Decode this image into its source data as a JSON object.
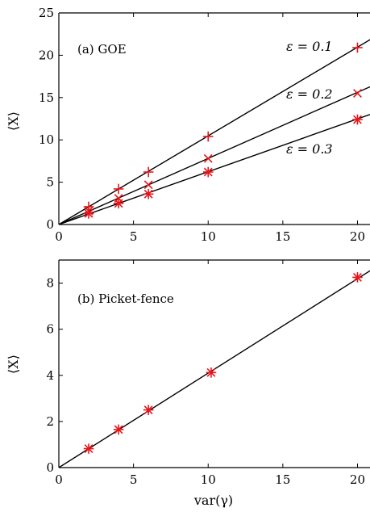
{
  "chart_data": [
    {
      "type": "scatter",
      "panel_label": "(a) GOE",
      "ylabel": "⟨X⟩",
      "xlabel": "",
      "xlim": [
        0,
        21
      ],
      "ylim": [
        0,
        25
      ],
      "xticks": [
        0,
        5,
        10,
        15,
        20
      ],
      "yticks": [
        0,
        5,
        10,
        15,
        20,
        25
      ],
      "grid": false,
      "series": [
        {
          "name": "ε = 0.1",
          "marker": "plus",
          "x": [
            2,
            4,
            6,
            10,
            20
          ],
          "y": [
            2.1,
            4.2,
            6.2,
            10.4,
            20.9
          ],
          "fit": {
            "x": [
              0,
              21
            ],
            "y": [
              0,
              22.0
            ]
          }
        },
        {
          "name": "ε = 0.2",
          "marker": "cross",
          "x": [
            2,
            4,
            6,
            10,
            20
          ],
          "y": [
            1.6,
            3.1,
            4.7,
            7.8,
            15.5
          ],
          "fit": {
            "x": [
              0,
              21
            ],
            "y": [
              0,
              16.4
            ]
          }
        },
        {
          "name": "ε = 0.3",
          "marker": "star",
          "x": [
            2,
            4,
            6,
            10,
            20
          ],
          "y": [
            1.3,
            2.5,
            3.6,
            6.2,
            12.4
          ],
          "fit": {
            "x": [
              0,
              21
            ],
            "y": [
              0,
              13.1
            ]
          }
        }
      ]
    },
    {
      "type": "scatter",
      "panel_label": "(b) Picket-fence",
      "ylabel": "⟨X⟩",
      "xlabel": "var(γ)",
      "xlim": [
        0,
        21
      ],
      "ylim": [
        0,
        9
      ],
      "xticks": [
        0,
        5,
        10,
        15,
        20
      ],
      "yticks": [
        0,
        2,
        4,
        6,
        8
      ],
      "grid": false,
      "series": [
        {
          "name": "",
          "marker": "star",
          "x": [
            2,
            4,
            6,
            10.2,
            20
          ],
          "y": [
            0.82,
            1.65,
            2.5,
            4.12,
            8.25
          ],
          "fit": {
            "x": [
              0,
              21
            ],
            "y": [
              0,
              8.6
            ]
          }
        }
      ]
    }
  ],
  "colors": {
    "markers": "#e8151b",
    "lines": "#000000",
    "axes": "#000000"
  }
}
